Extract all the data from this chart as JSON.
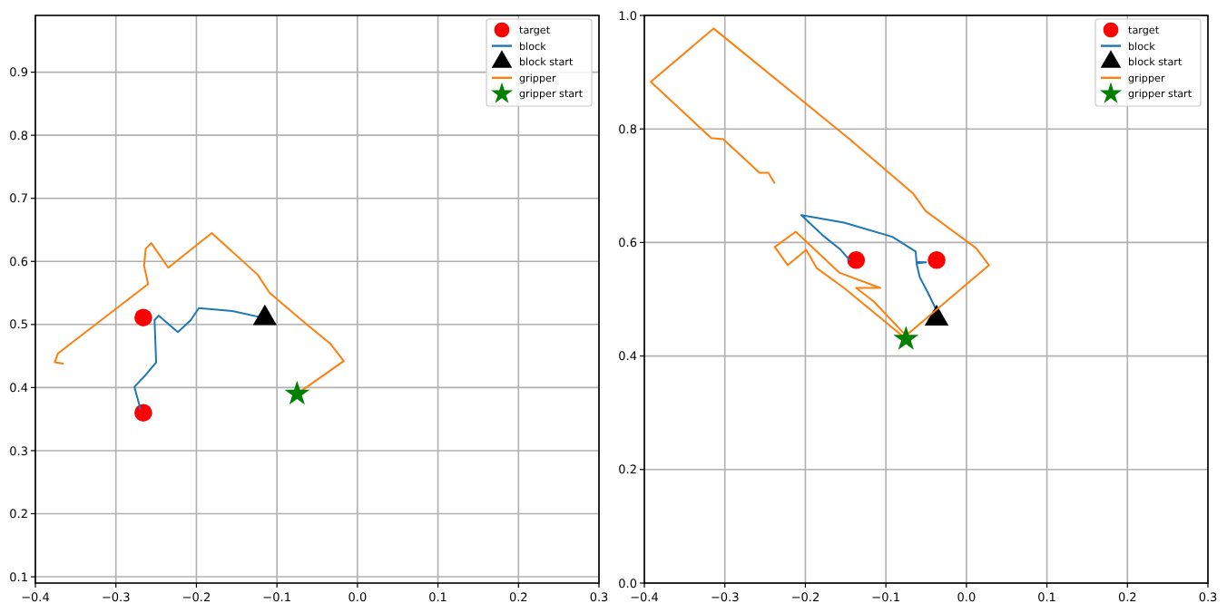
{
  "chart_data": [
    {
      "type": "scatter",
      "xlim": [
        -0.4,
        0.3
      ],
      "ylim": [
        0.09,
        0.99
      ],
      "xticks": [
        {
          "value": -0.4,
          "label": "−0.4"
        },
        {
          "value": -0.3,
          "label": "−0.3"
        },
        {
          "value": -0.2,
          "label": "−0.2"
        },
        {
          "value": -0.1,
          "label": "−0.1"
        },
        {
          "value": 0,
          "label": "0.0"
        },
        0.1,
        0.2,
        0.3
      ],
      "yticks": [
        0.1,
        0.2,
        0.3,
        0.4,
        0.5,
        0.6,
        0.7,
        0.8,
        0.9
      ],
      "grid": true,
      "legend": "top right",
      "series": [
        {
          "name": "target",
          "type": "scatter",
          "marker": "circle",
          "color": "#ff0000",
          "x": [
            -0.266,
            -0.266
          ],
          "values": [
            0.511,
            0.36
          ]
        },
        {
          "name": "block",
          "type": "line",
          "marker": "none",
          "color": "#1f77b4",
          "x": [
            -0.115,
            -0.154,
            -0.197,
            -0.207,
            -0.223,
            -0.247,
            -0.252,
            -0.25,
            -0.263,
            -0.277,
            -0.271,
            -0.27
          ],
          "values": [
            0.51,
            0.521,
            0.526,
            0.507,
            0.488,
            0.514,
            0.507,
            0.44,
            0.42,
            0.401,
            0.373,
            0.365
          ]
        },
        {
          "name": "block start",
          "type": "scatter",
          "marker": "triangle",
          "color": "#000000",
          "x": [
            -0.115
          ],
          "values": [
            0.51
          ]
        },
        {
          "name": "gripper",
          "type": "line",
          "marker": "none",
          "color": "#ff7f0e",
          "x": [
            -0.075,
            -0.017,
            -0.034,
            -0.06,
            -0.109,
            -0.124,
            -0.181,
            -0.235,
            -0.256,
            -0.263,
            -0.265,
            -0.26,
            -0.372,
            -0.376,
            -0.365
          ],
          "values": [
            0.39,
            0.442,
            0.47,
            0.497,
            0.55,
            0.579,
            0.645,
            0.59,
            0.629,
            0.62,
            0.593,
            0.564,
            0.454,
            0.44,
            0.438
          ]
        },
        {
          "name": "gripper start",
          "type": "scatter",
          "marker": "star",
          "color": "#008000",
          "x": [
            -0.075
          ],
          "values": [
            0.39
          ]
        }
      ]
    },
    {
      "type": "scatter",
      "xlim": [
        -0.4,
        0.3
      ],
      "ylim": [
        0,
        1
      ],
      "xticks": [
        {
          "value": -0.4,
          "label": "−0.4"
        },
        {
          "value": -0.3,
          "label": "−0.3"
        },
        {
          "value": -0.2,
          "label": "−0.2"
        },
        {
          "value": -0.1,
          "label": "−0.1"
        },
        {
          "value": 0,
          "label": "0.0"
        },
        0.1,
        0.2,
        0.3
      ],
      "yticks": [
        {
          "value": 0,
          "label": "0.0"
        },
        0.2,
        0.4,
        0.6,
        0.8,
        {
          "value": 1,
          "label": "1.0"
        }
      ],
      "grid": true,
      "legend": "top right",
      "series": [
        {
          "name": "target",
          "type": "scatter",
          "marker": "circle",
          "color": "#ff0000",
          "x": [
            -0.137,
            -0.037
          ],
          "values": [
            0.569,
            0.569
          ]
        },
        {
          "name": "block",
          "type": "line",
          "marker": "none",
          "color": "#1f77b4",
          "x": [
            -0.037,
            -0.048,
            -0.058,
            -0.062,
            -0.05,
            -0.062,
            -0.063,
            -0.092,
            -0.152,
            -0.205,
            -0.178,
            -0.156,
            -0.145
          ],
          "values": [
            0.48,
            0.512,
            0.539,
            0.563,
            0.565,
            0.566,
            0.584,
            0.61,
            0.635,
            0.648,
            0.612,
            0.587,
            0.569
          ]
        },
        {
          "name": "block start",
          "type": "scatter",
          "marker": "triangle",
          "color": "#000000",
          "x": [
            -0.037
          ],
          "values": [
            0.466
          ]
        },
        {
          "name": "gripper",
          "type": "line",
          "marker": "none",
          "color": "#ff7f0e",
          "x": [
            -0.075,
            -0.152,
            -0.186,
            -0.199,
            -0.222,
            -0.238,
            -0.212,
            -0.158,
            -0.107,
            -0.137,
            -0.115,
            -0.075,
            0.028,
            0.012,
            -0.051,
            -0.066,
            -0.145,
            -0.314,
            -0.392,
            -0.317,
            -0.302,
            -0.257,
            -0.246,
            -0.238
          ],
          "values": [
            0.43,
            0.52,
            0.555,
            0.587,
            0.56,
            0.592,
            0.619,
            0.547,
            0.52,
            0.52,
            0.496,
            0.436,
            0.56,
            0.59,
            0.656,
            0.686,
            0.782,
            0.977,
            0.883,
            0.784,
            0.782,
            0.723,
            0.723,
            0.704
          ]
        },
        {
          "name": "gripper start",
          "type": "scatter",
          "marker": "star",
          "color": "#008000",
          "x": [
            -0.075
          ],
          "values": [
            0.43
          ]
        }
      ]
    }
  ]
}
